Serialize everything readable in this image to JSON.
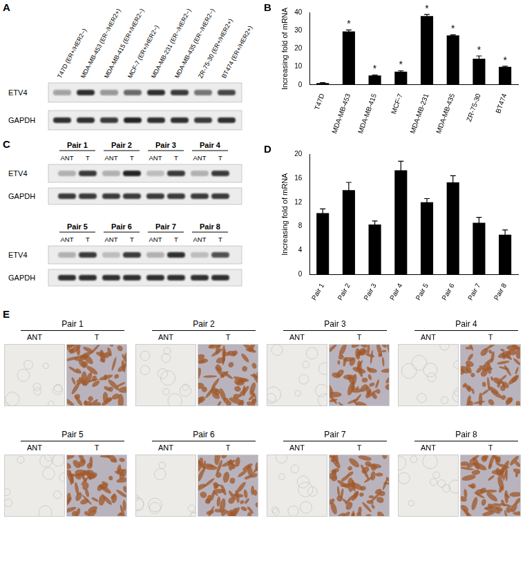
{
  "chart_data": [
    {
      "type": "bar",
      "panel": "B",
      "ylabel": "Increasing fold of mRNA",
      "categories": [
        "T47D",
        "MDA-MB-453",
        "MDA-MB-415",
        "MCF-7",
        "MDA-MB-231",
        "MDA-MB-435",
        "ZR-75-30",
        "BT474"
      ],
      "values": [
        1,
        29.5,
        5.2,
        7.3,
        38,
        27.3,
        14.5,
        10
      ],
      "errors": [
        0.3,
        0.8,
        0.3,
        0.5,
        0.9,
        0.4,
        1.5,
        0.3
      ],
      "annotations": [
        null,
        "*",
        "*",
        "*",
        "*",
        "*",
        "*",
        "*"
      ],
      "color": "#000000",
      "ylim": [
        0,
        40
      ],
      "yticks": [
        0,
        10,
        20,
        30,
        40
      ],
      "grid": false
    },
    {
      "type": "bar",
      "panel": "D",
      "ylabel": "Increasing fold of mRNA",
      "categories": [
        "Pair 1",
        "Pair 2",
        "Pair 3",
        "Pair 4",
        "Pair 5",
        "Pair 6",
        "Pair 7",
        "Pair 8"
      ],
      "values": [
        10.2,
        14,
        8.3,
        17.3,
        12,
        15.3,
        8.6,
        6.6
      ],
      "errors": [
        0.7,
        1.3,
        0.6,
        1.5,
        0.6,
        1.1,
        0.9,
        0.8
      ],
      "color": "#000000",
      "ylim": [
        0,
        20
      ],
      "yticks": [
        0,
        4,
        8,
        12,
        16,
        20
      ],
      "grid": false
    }
  ],
  "blots": [
    {
      "panel": "A",
      "lanes": [
        "T47D (ER+/HER2−)",
        "MDA-MB-453 (ER−/HER2+)",
        "MDA-MB-415 (ER+/HER2−)",
        "MCF-7 (ER+/HER2−)",
        "MDA-MB-231 (ER−/HER2−)",
        "MDA-MB-435 (ER−/HER2−)",
        "ZR-75-30 (ER+/HER2+)",
        "BT474 (ER+/HER2+)"
      ],
      "rows": [
        {
          "label": "ETV4",
          "intensity": [
            0.35,
            0.85,
            0.4,
            0.6,
            0.85,
            0.8,
            0.55,
            0.75
          ]
        },
        {
          "label": "GAPDH",
          "intensity": [
            0.85,
            0.85,
            0.8,
            0.9,
            0.85,
            0.85,
            0.8,
            0.85
          ]
        }
      ]
    },
    {
      "panel": "C",
      "groups": [
        {
          "pairs": [
            "Pair 1",
            "Pair 2",
            "Pair 3",
            "Pair 4"
          ],
          "lanes": [
            "ANT",
            "T",
            "ANT",
            "T",
            "ANT",
            "T",
            "ANT",
            "T"
          ],
          "rows": [
            {
              "label": "ETV4",
              "intensity": [
                0.25,
                0.8,
                0.25,
                0.9,
                0.2,
                0.8,
                0.25,
                0.8
              ]
            },
            {
              "label": "GAPDH",
              "intensity": [
                0.8,
                0.8,
                0.8,
                0.8,
                0.8,
                0.8,
                0.8,
                0.8
              ]
            }
          ]
        },
        {
          "pairs": [
            "Pair 5",
            "Pair 6",
            "Pair 7",
            "Pair 8"
          ],
          "lanes": [
            "ANT",
            "T",
            "ANT",
            "T",
            "ANT",
            "T",
            "ANT",
            "T"
          ],
          "rows": [
            {
              "label": "ETV4",
              "intensity": [
                0.25,
                0.8,
                0.2,
                0.8,
                0.25,
                0.85,
                0.2,
                0.7
              ]
            },
            {
              "label": "GAPDH",
              "intensity": [
                0.85,
                0.85,
                0.85,
                0.85,
                0.85,
                0.85,
                0.85,
                0.85
              ]
            }
          ]
        }
      ]
    }
  ],
  "ihc": {
    "panel": "E",
    "rows": [
      [
        "Pair 1",
        "Pair 2",
        "Pair 3",
        "Pair 4"
      ],
      [
        "Pair 5",
        "Pair 6",
        "Pair 7",
        "Pair 8"
      ]
    ],
    "lanes": [
      "ANT",
      "T"
    ]
  }
}
